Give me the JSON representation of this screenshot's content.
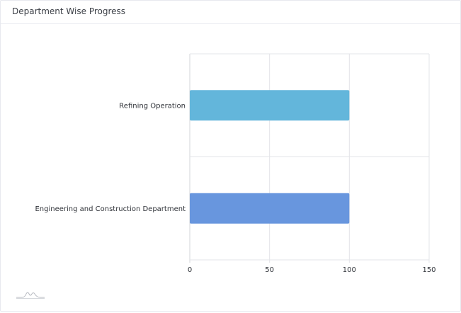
{
  "card": {
    "title": "Department Wise Progress",
    "footer_icon": "sparkline-icon"
  },
  "colors": {
    "gridline": "#e3e4e8",
    "axis": "#d3d5da",
    "label_text": "#2f3238"
  },
  "chart_data": {
    "type": "bar",
    "orientation": "horizontal",
    "title": "",
    "xlabel": "",
    "ylabel": "",
    "categories": [
      "Refining Operation",
      "Engineering and Construction Department"
    ],
    "values": [
      100,
      100
    ],
    "bar_colors": [
      "#63b6db",
      "#6896de"
    ],
    "xlim": [
      0,
      150
    ],
    "x_ticks": [
      0,
      50,
      100,
      150
    ],
    "grid": true,
    "legend": "none"
  }
}
